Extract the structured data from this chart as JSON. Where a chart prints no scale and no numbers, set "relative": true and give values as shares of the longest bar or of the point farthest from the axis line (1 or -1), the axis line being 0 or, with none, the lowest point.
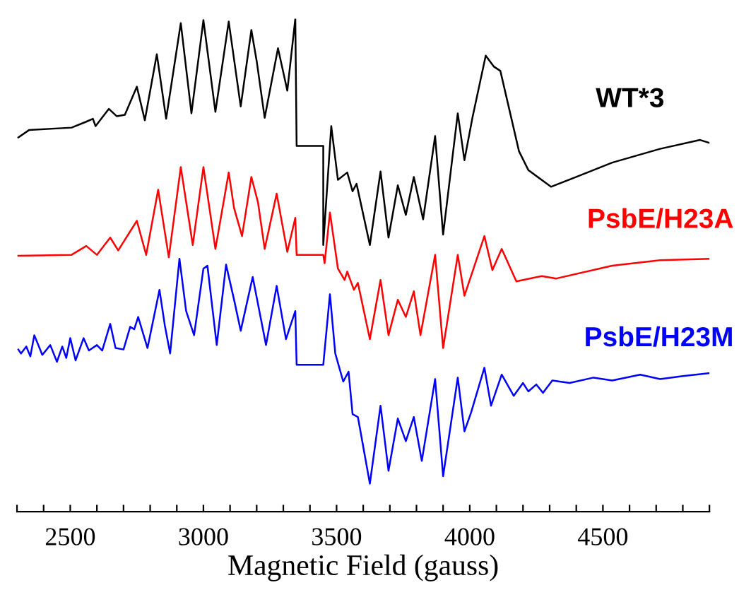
{
  "chart_data": {
    "type": "line",
    "relative": true,
    "xlabel": "Magnetic Field (gauss)",
    "xlim": [
      2300,
      4900
    ],
    "xticks": [
      {
        "value": 2300,
        "label": null
      },
      {
        "value": 2400,
        "label": null
      },
      2500,
      {
        "value": 2600,
        "label": null
      },
      {
        "value": 2700,
        "label": null
      },
      {
        "value": 2800,
        "label": null
      },
      {
        "value": 2900,
        "label": null
      },
      3000,
      {
        "value": 3100,
        "label": null
      },
      {
        "value": 3200,
        "label": null
      },
      {
        "value": 3300,
        "label": null
      },
      {
        "value": 3400,
        "label": null
      },
      3500,
      {
        "value": 3600,
        "label": null
      },
      {
        "value": 3700,
        "label": null
      },
      {
        "value": 3800,
        "label": null
      },
      {
        "value": 3900,
        "label": null
      },
      4000,
      {
        "value": 4100,
        "label": null
      },
      {
        "value": 4200,
        "label": null
      },
      {
        "value": 4300,
        "label": null
      },
      {
        "value": 4400,
        "label": null
      },
      4500,
      {
        "value": 4600,
        "label": null
      },
      {
        "value": 4700,
        "label": null
      },
      {
        "value": 4800,
        "label": null
      },
      {
        "value": 4900,
        "label": null
      }
    ],
    "grid": false,
    "legend": false,
    "marker": "none",
    "line_style": "solid",
    "series": [
      {
        "name": "WT*3",
        "color": "#000000",
        "x": [
          2305,
          2345,
          2505,
          2560,
          2585,
          2595,
          2645,
          2675,
          2705,
          2750,
          2780,
          2825,
          2860,
          2915,
          2955,
          3000,
          3045,
          3095,
          3140,
          3180,
          3200,
          3230,
          3280,
          3315,
          3345,
          3350,
          3450,
          3450,
          3480,
          3505,
          3540,
          3560,
          3575,
          3625,
          3665,
          3695,
          3730,
          3760,
          3790,
          3825,
          3870,
          3900,
          3955,
          3980,
          4010,
          4060,
          4090,
          4115,
          4185,
          4220,
          4305,
          4400,
          4535,
          4715,
          4865,
          4900
        ],
        "values": [
          0.759,
          0.774,
          0.779,
          0.791,
          0.797,
          0.782,
          0.817,
          0.802,
          0.805,
          0.862,
          0.794,
          0.928,
          0.797,
          0.991,
          0.808,
          0.997,
          0.811,
          0.994,
          0.822,
          0.977,
          0.914,
          0.799,
          0.94,
          0.854,
          1.0,
          0.742,
          0.742,
          0.541,
          0.782,
          0.673,
          0.688,
          0.65,
          0.665,
          0.541,
          0.69,
          0.556,
          0.662,
          0.602,
          0.679,
          0.593,
          0.762,
          0.562,
          0.808,
          0.713,
          0.799,
          0.925,
          0.903,
          0.894,
          0.731,
          0.693,
          0.659,
          0.679,
          0.708,
          0.736,
          0.754,
          0.748
        ]
      },
      {
        "name": "PsbE/H23A",
        "color": "#ff0000",
        "x": [
          2305,
          2505,
          2560,
          2600,
          2650,
          2680,
          2750,
          2785,
          2830,
          2870,
          2915,
          2960,
          3000,
          3045,
          3095,
          3115,
          3145,
          3180,
          3205,
          3230,
          3275,
          3315,
          3345,
          3350,
          3450,
          3455,
          3475,
          3505,
          3530,
          3540,
          3565,
          3580,
          3625,
          3665,
          3695,
          3730,
          3760,
          3790,
          3815,
          3870,
          3900,
          3955,
          3980,
          4055,
          4085,
          4120,
          4175,
          4270,
          4325,
          4535,
          4715,
          4900
        ],
        "values": [
          0.519,
          0.521,
          0.539,
          0.521,
          0.556,
          0.53,
          0.59,
          0.521,
          0.653,
          0.516,
          0.699,
          0.541,
          0.699,
          0.533,
          0.688,
          0.616,
          0.559,
          0.679,
          0.627,
          0.533,
          0.645,
          0.527,
          0.596,
          0.521,
          0.521,
          0.504,
          0.607,
          0.493,
          0.47,
          0.487,
          0.45,
          0.464,
          0.35,
          0.47,
          0.358,
          0.43,
          0.395,
          0.447,
          0.358,
          0.521,
          0.332,
          0.521,
          0.438,
          0.559,
          0.49,
          0.533,
          0.467,
          0.478,
          0.473,
          0.499,
          0.51,
          0.513
        ]
      },
      {
        "name": "PsbE/H23M",
        "color": "#0000ff",
        "x": [
          2305,
          2315,
          2335,
          2350,
          2365,
          2395,
          2425,
          2450,
          2470,
          2485,
          2500,
          2520,
          2550,
          2570,
          2600,
          2620,
          2650,
          2670,
          2700,
          2725,
          2740,
          2755,
          2790,
          2835,
          2855,
          2875,
          2910,
          2935,
          2965,
          3000,
          3015,
          3050,
          3085,
          3115,
          3140,
          3185,
          3235,
          3275,
          3310,
          3345,
          3350,
          3450,
          3475,
          3495,
          3525,
          3545,
          3560,
          3580,
          3625,
          3665,
          3695,
          3730,
          3760,
          3790,
          3820,
          3870,
          3900,
          3955,
          3980,
          4005,
          4055,
          4080,
          4120,
          4165,
          4200,
          4220,
          4250,
          4275,
          4310,
          4375,
          4465,
          4535,
          4640,
          4715,
          4800,
          4900
        ],
        "values": [
          0.329,
          0.321,
          0.335,
          0.315,
          0.358,
          0.318,
          0.338,
          0.304,
          0.335,
          0.312,
          0.352,
          0.307,
          0.352,
          0.327,
          0.338,
          0.327,
          0.381,
          0.332,
          0.329,
          0.375,
          0.37,
          0.395,
          0.332,
          0.45,
          0.378,
          0.321,
          0.513,
          0.407,
          0.358,
          0.493,
          0.499,
          0.338,
          0.501,
          0.43,
          0.367,
          0.476,
          0.338,
          0.458,
          0.35,
          0.407,
          0.298,
          0.298,
          0.441,
          0.321,
          0.264,
          0.284,
          0.198,
          0.192,
          0.057,
          0.215,
          0.083,
          0.189,
          0.143,
          0.192,
          0.103,
          0.269,
          0.072,
          0.272,
          0.163,
          0.201,
          0.292,
          0.215,
          0.278,
          0.235,
          0.261,
          0.244,
          0.258,
          0.241,
          0.266,
          0.261,
          0.272,
          0.266,
          0.278,
          0.269,
          0.275,
          0.281
        ]
      }
    ]
  }
}
